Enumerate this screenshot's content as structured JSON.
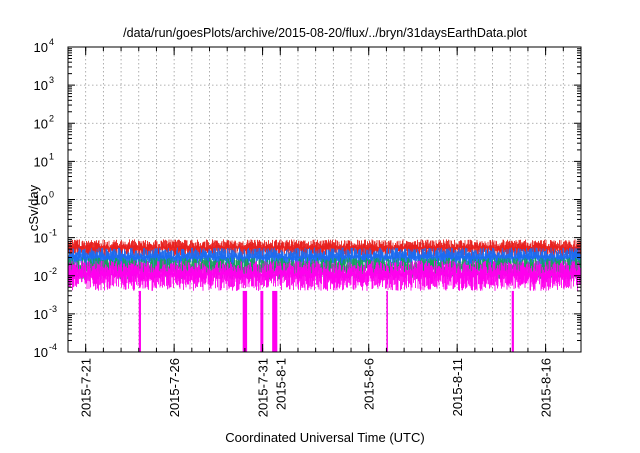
{
  "chart_data": {
    "type": "line",
    "title": "/data/run/goesPlots/archive/2015-08-20/flux/../bryn/31daysEarthData.plot",
    "xlabel": "Coordinated Universal Time (UTC)",
    "ylabel": "cSv/day",
    "x_range": [
      "2015-07-20",
      "2015-08-18"
    ],
    "yscale": "log",
    "ylim": [
      0.0001,
      10000
    ],
    "y_ticks": [
      {
        "base": "10",
        "exp": "-4",
        "value": 0.0001
      },
      {
        "base": "10",
        "exp": "-3",
        "value": 0.001
      },
      {
        "base": "10",
        "exp": "-2",
        "value": 0.01
      },
      {
        "base": "10",
        "exp": "-1",
        "value": 0.1
      },
      {
        "base": "10",
        "exp": "0",
        "value": 1
      },
      {
        "base": "10",
        "exp": "1",
        "value": 10
      },
      {
        "base": "10",
        "exp": "2",
        "value": 100
      },
      {
        "base": "10",
        "exp": "3",
        "value": 1000
      },
      {
        "base": "10",
        "exp": "4",
        "value": 10000
      }
    ],
    "x_ticks": [
      {
        "label": "2015-7-21",
        "date": "2015-07-21"
      },
      {
        "label": "2015-7-26",
        "date": "2015-07-26"
      },
      {
        "label": "2015-7-31",
        "date": "2015-07-31"
      },
      {
        "label": "2015-8-1",
        "date": "2015-08-01"
      },
      {
        "label": "2015-8-6",
        "date": "2015-08-06"
      },
      {
        "label": "2015-8-11",
        "date": "2015-08-11"
      },
      {
        "label": "2015-8-16",
        "date": "2015-08-16"
      }
    ],
    "grid": true,
    "series": [
      {
        "color": "#e8201e",
        "band": [
          0.03,
          0.09
        ]
      },
      {
        "color": "#1c6cf0",
        "band": [
          0.015,
          0.055
        ]
      },
      {
        "color": "#18a05a",
        "band": [
          0.008,
          0.03
        ]
      },
      {
        "color": "#ff00ee",
        "band": [
          0.004,
          0.025
        ]
      }
    ],
    "dropouts": [
      {
        "start": "2015-07-24T00:00",
        "end": "2015-07-24T03:00"
      },
      {
        "start": "2015-07-29T21:00",
        "end": "2015-07-30T03:00"
      },
      {
        "start": "2015-07-30T21:00",
        "end": "2015-07-31T01:00"
      },
      {
        "start": "2015-07-31T13:00",
        "end": "2015-07-31T20:00"
      },
      {
        "start": "2015-08-07T00:00",
        "end": "2015-08-07T02:00"
      },
      {
        "start": "2015-08-14T02:00",
        "end": "2015-08-14T05:00"
      }
    ]
  }
}
